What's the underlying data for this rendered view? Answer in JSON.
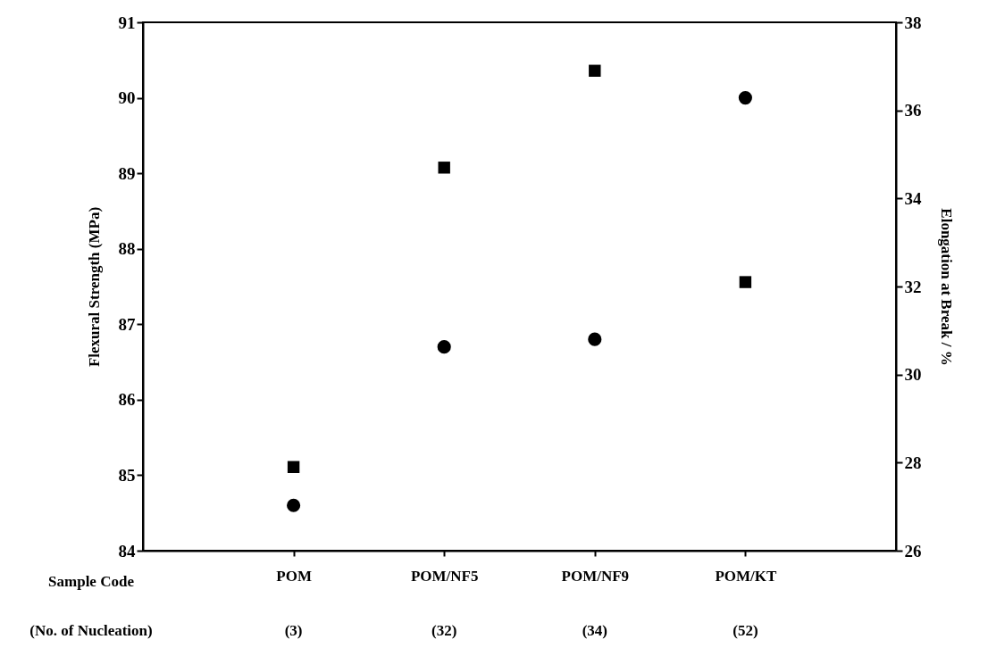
{
  "chart_data": {
    "type": "scatter",
    "ylabel": "Flexural Strength (MPa)",
    "y2label": "Elongation at Break / %",
    "categories": [
      "POM",
      "POM/NF5",
      "POM/NF9",
      "POM/KT"
    ],
    "series": [
      {
        "marker": "circle",
        "color": "#000000",
        "values": [
          84.6,
          86.7,
          86.8,
          90.0
        ]
      },
      {
        "marker": "square",
        "color": "#000000",
        "axis": "y2",
        "values": [
          27.9,
          34.7,
          36.9,
          32.1
        ]
      }
    ],
    "ylim": [
      84,
      91
    ],
    "yticks": [
      84,
      85,
      86,
      87,
      88,
      89,
      90,
      91
    ],
    "y2lim": [
      26,
      38
    ],
    "y2ticks": [
      26,
      28,
      30,
      32,
      34,
      36,
      38
    ],
    "grid": false,
    "annotations": [
      "Sample Code",
      "(No. of Nucleation)",
      "(3)",
      "(32)",
      "(34)",
      "(52)"
    ]
  }
}
